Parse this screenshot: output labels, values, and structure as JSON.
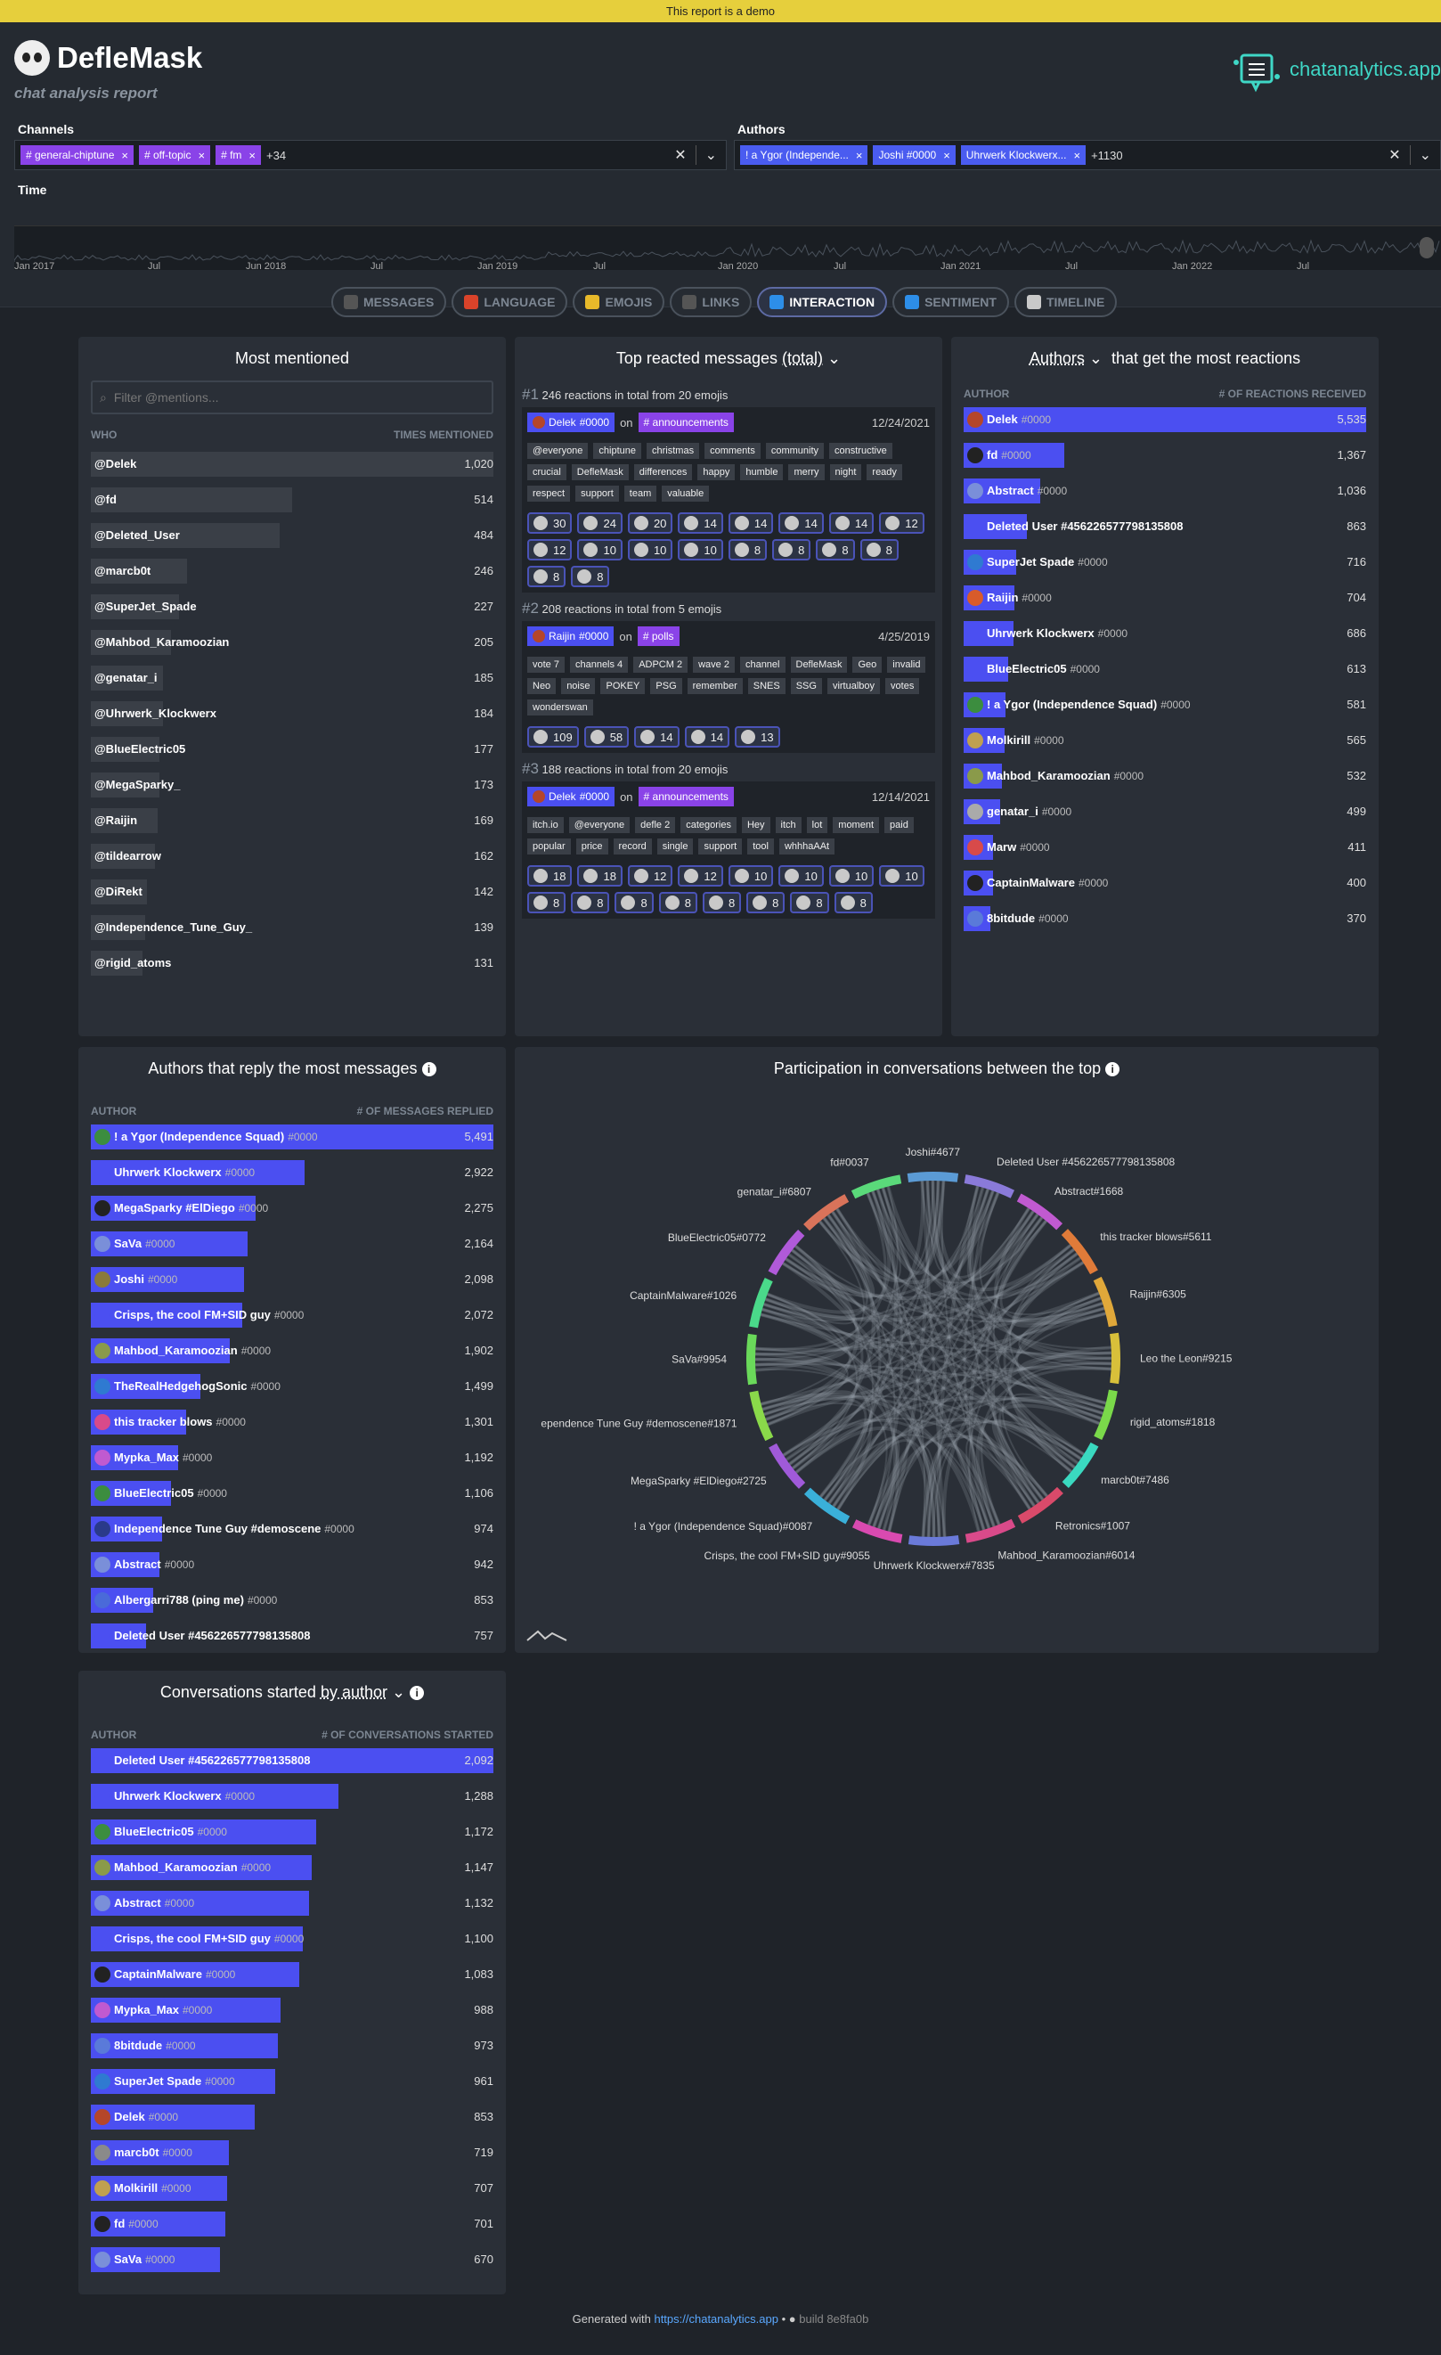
{
  "banner": "This report is a demo",
  "app": {
    "title": "DefleMask",
    "subtitle": "chat analysis report",
    "brand": "chatanalytics",
    "brand_tld": ".app"
  },
  "filters": {
    "channels_label": "Channels",
    "channels": [
      "# general-chiptune",
      "# off-topic",
      "# fm"
    ],
    "channels_more": "+34",
    "authors_label": "Authors",
    "authors": [
      "! a Ygor (Independe...",
      "Joshi #0000",
      "Uhrwerk Klockwerx..."
    ],
    "authors_more": "+1130",
    "time_label": "Time",
    "time_ticks": [
      "Jan 2017",
      "Jul",
      "Jun 2018",
      "Jul",
      "Jan 2019",
      "Jul",
      "Jan 2020",
      "Jul",
      "Jan 2021",
      "Jul",
      "Jan 2022",
      "Jul"
    ]
  },
  "tabs": [
    {
      "label": "MESSAGES",
      "icon": "message-icon",
      "color": "#555"
    },
    {
      "label": "LANGUAGE",
      "icon": "language-icon",
      "color": "#d9432a"
    },
    {
      "label": "EMOJIS",
      "icon": "emoji-icon",
      "color": "#e7b92a"
    },
    {
      "label": "LINKS",
      "icon": "link-icon",
      "color": "#555"
    },
    {
      "label": "INTERACTION",
      "icon": "interaction-icon",
      "color": "#2d8ee8"
    },
    {
      "label": "SENTIMENT",
      "icon": "heart-icon",
      "color": "#2d8ee8"
    },
    {
      "label": "TIMELINE",
      "icon": "calendar-icon",
      "color": "#c9c9c9"
    }
  ],
  "most_mentioned": {
    "title": "Most mentioned",
    "placeholder": "Filter @mentions...",
    "col_who": "WHO",
    "col_times": "TIMES MENTIONED",
    "rows": [
      {
        "name": "@Delek",
        "value": "1,020",
        "pct": 1.0
      },
      {
        "name": "@fd",
        "value": "514",
        "pct": 0.5
      },
      {
        "name": "@Deleted_User",
        "value": "484",
        "pct": 0.47
      },
      {
        "name": "@marcb0t",
        "value": "246",
        "pct": 0.24
      },
      {
        "name": "@SuperJet_Spade",
        "value": "227",
        "pct": 0.22
      },
      {
        "name": "@Mahbod_Karamoozian",
        "value": "205",
        "pct": 0.2
      },
      {
        "name": "@genatar_i",
        "value": "185",
        "pct": 0.18
      },
      {
        "name": "@Uhrwerk_Klockwerx",
        "value": "184",
        "pct": 0.18
      },
      {
        "name": "@BlueElectric05",
        "value": "177",
        "pct": 0.17
      },
      {
        "name": "@MegaSparky_",
        "value": "173",
        "pct": 0.17
      },
      {
        "name": "@Raijin",
        "value": "169",
        "pct": 0.165
      },
      {
        "name": "@tildearrow",
        "value": "162",
        "pct": 0.16
      },
      {
        "name": "@DiRekt",
        "value": "142",
        "pct": 0.14
      },
      {
        "name": "@Independence_Tune_Guy_",
        "value": "139",
        "pct": 0.136
      },
      {
        "name": "@rigid_atoms",
        "value": "131",
        "pct": 0.128
      }
    ]
  },
  "top_reacted": {
    "title": "Top reacted messages",
    "title_sel": "(total)",
    "messages": [
      {
        "rank": "#1",
        "summary": "246 reactions in total from 20 emojis",
        "author": "Delek",
        "tag": "#0000",
        "on": "on",
        "channel": "# announcements",
        "date": "12/24/2021",
        "words": [
          "@everyone",
          "chiptune",
          "christmas",
          "comments",
          "community",
          "constructive",
          "crucial",
          "DefleMask",
          "differences",
          "happy",
          "humble",
          "merry",
          "night",
          "ready",
          "respect",
          "support",
          "team",
          "valuable"
        ],
        "reactions": [
          "30",
          "24",
          "20",
          "14",
          "14",
          "14",
          "14",
          "12",
          "12",
          "10",
          "10",
          "10",
          "8",
          "8",
          "8",
          "8",
          "8",
          "8"
        ]
      },
      {
        "rank": "#2",
        "summary": "208 reactions in total from 5 emojis",
        "author": "Raijin",
        "tag": "#0000",
        "on": "on",
        "channel": "# polls",
        "date": "4/25/2019",
        "words": [
          "vote 7",
          "channels 4",
          "ADPCM 2",
          "wave 2",
          "channel",
          "DefleMask",
          "Geo",
          "invalid",
          "Neo",
          "noise",
          "POKEY",
          "PSG",
          "remember",
          "SNES",
          "SSG",
          "virtualboy",
          "votes",
          "wonderswan"
        ],
        "reactions": [
          "109",
          "58",
          "14",
          "14",
          "13"
        ]
      },
      {
        "rank": "#3",
        "summary": "188 reactions in total from 20 emojis",
        "author": "Delek",
        "tag": "#0000",
        "on": "on",
        "channel": "# announcements",
        "date": "12/14/2021",
        "words": [
          "itch.io",
          "@everyone",
          "defle 2",
          "categories",
          "Hey",
          "itch",
          "lot",
          "moment",
          "paid",
          "popular",
          "price",
          "record",
          "single",
          "support",
          "tool",
          "whhhaAAt"
        ],
        "reactions": [
          "18",
          "18",
          "12",
          "12",
          "10",
          "10",
          "10",
          "10",
          "8",
          "8",
          "8",
          "8",
          "8",
          "8",
          "8",
          "8"
        ]
      }
    ]
  },
  "authors_reactions": {
    "title_sel": "Authors",
    "title": "that get the most reactions",
    "col_author": "AUTHOR",
    "col_val": "# OF REACTIONS RECEIVED",
    "rows": [
      {
        "name": "Delek",
        "tag": "#0000",
        "value": "5,535",
        "pct": 1.0,
        "av": "#b5462a"
      },
      {
        "name": "fd",
        "tag": "#0000",
        "value": "1,367",
        "pct": 0.25,
        "av": "#222"
      },
      {
        "name": "Abstract",
        "tag": "#0000",
        "value": "1,036",
        "pct": 0.19,
        "av": "#7a8fd9"
      },
      {
        "name": "Deleted User #456226577798135808",
        "tag": "",
        "value": "863",
        "pct": 0.156,
        "av": "#4b4ff1"
      },
      {
        "name": "SuperJet Spade",
        "tag": "#0000",
        "value": "716",
        "pct": 0.13,
        "av": "#2f7ad1"
      },
      {
        "name": "Raijin",
        "tag": "#0000",
        "value": "704",
        "pct": 0.127,
        "av": "#d85b2a"
      },
      {
        "name": "Uhrwerk Klockwerx",
        "tag": "#0000",
        "value": "686",
        "pct": 0.124,
        "av": "#4b4ff1"
      },
      {
        "name": "BlueElectric05",
        "tag": "#0000",
        "value": "613",
        "pct": 0.11,
        "av": "#4b4ff1"
      },
      {
        "name": "! a Ygor (Independence Squad)",
        "tag": "#0000",
        "value": "581",
        "pct": 0.105,
        "av": "#3c8d3f"
      },
      {
        "name": "Molkirill",
        "tag": "#0000",
        "value": "565",
        "pct": 0.102,
        "av": "#c0a050"
      },
      {
        "name": "Mahbod_Karamoozian",
        "tag": "#0000",
        "value": "532",
        "pct": 0.096,
        "av": "#8a9a4a"
      },
      {
        "name": "genatar_i",
        "tag": "#0000",
        "value": "499",
        "pct": 0.09,
        "av": "#aaa"
      },
      {
        "name": "Marw",
        "tag": "#0000",
        "value": "411",
        "pct": 0.074,
        "av": "#d84a4a"
      },
      {
        "name": "CaptainMalware",
        "tag": "#0000",
        "value": "400",
        "pct": 0.072,
        "av": "#222"
      },
      {
        "name": "8bitdude",
        "tag": "#0000",
        "value": "370",
        "pct": 0.067,
        "av": "#5a7ad9"
      }
    ]
  },
  "replies": {
    "title": "Authors that reply the most messages",
    "col_author": "AUTHOR",
    "col_val": "# OF MESSAGES REPLIED",
    "rows": [
      {
        "name": "! a Ygor (Independence Squad)",
        "tag": "#0000",
        "value": "5,491",
        "pct": 1.0,
        "av": "#3c8d3f"
      },
      {
        "name": "Uhrwerk Klockwerx",
        "tag": "#0000",
        "value": "2,922",
        "pct": 0.53,
        "av": "#4b4ff1"
      },
      {
        "name": "MegaSparky #ElDiego",
        "tag": "#0000",
        "value": "2,275",
        "pct": 0.41,
        "av": "#222"
      },
      {
        "name": "SaVa",
        "tag": "#0000",
        "value": "2,164",
        "pct": 0.39,
        "av": "#7a8fd9"
      },
      {
        "name": "Joshi",
        "tag": "#0000",
        "value": "2,098",
        "pct": 0.38,
        "av": "#8a7a3a"
      },
      {
        "name": "Crisps, the cool FM+SID guy",
        "tag": "#0000",
        "value": "2,072",
        "pct": 0.377,
        "av": "#4b4ff1"
      },
      {
        "name": "Mahbod_Karamoozian",
        "tag": "#0000",
        "value": "1,902",
        "pct": 0.346,
        "av": "#8a9a4a"
      },
      {
        "name": "TheRealHedgehogSonic",
        "tag": "#0000",
        "value": "1,499",
        "pct": 0.273,
        "av": "#2f7ad1"
      },
      {
        "name": "this tracker blows",
        "tag": "#0000",
        "value": "1,301",
        "pct": 0.237,
        "av": "#d84a8a"
      },
      {
        "name": "Mypka_Max",
        "tag": "#0000",
        "value": "1,192",
        "pct": 0.217,
        "av": "#c05ad0"
      },
      {
        "name": "BlueElectric05",
        "tag": "#0000",
        "value": "1,106",
        "pct": 0.2,
        "av": "#3c8d3f"
      },
      {
        "name": "Independence Tune Guy #demoscene",
        "tag": "#0000",
        "value": "974",
        "pct": 0.177,
        "av": "#2a3a8a"
      },
      {
        "name": "Abstract",
        "tag": "#0000",
        "value": "942",
        "pct": 0.17,
        "av": "#7a8fd9"
      },
      {
        "name": "Albergarri788 (ping me)",
        "tag": "#0000",
        "value": "853",
        "pct": 0.155,
        "av": "#4a6ad9"
      },
      {
        "name": "Deleted User #456226577798135808",
        "tag": "",
        "value": "757",
        "pct": 0.138,
        "av": "#4b4ff1"
      }
    ]
  },
  "participation": {
    "title": "Participation in conversations between the top",
    "labels": [
      {
        "name": "Joshi#4677",
        "color": "#5b9bd5"
      },
      {
        "name": "Deleted User #456226577798135808",
        "color": "#8a7ad9"
      },
      {
        "name": "Abstract#1668",
        "color": "#c05ad0"
      },
      {
        "name": "this tracker blows#5611",
        "color": "#e07b39"
      },
      {
        "name": "Raijin#6305",
        "color": "#e0a83a"
      },
      {
        "name": "Leo the Leon#9215",
        "color": "#d8c03a"
      },
      {
        "name": "rigid_atoms#1818",
        "color": "#7ad94a"
      },
      {
        "name": "marcb0t#7486",
        "color": "#3ad9c0"
      },
      {
        "name": "Retronics#1007",
        "color": "#d94a6a"
      },
      {
        "name": "Mahbod_Karamoozian#6014",
        "color": "#d94a8a"
      },
      {
        "name": "Uhrwerk Klockwerx#7835",
        "color": "#6a7ad9"
      },
      {
        "name": "Crisps, the cool FM+SID guy#9055",
        "color": "#d94ab0"
      },
      {
        "name": "! a Ygor (Independence Squad)#0087",
        "color": "#3ab0d9"
      },
      {
        "name": "MegaSparky #ElDiego#2725",
        "color": "#a05ad9"
      },
      {
        "name": "ependence Tune Guy #demoscene#1871",
        "color": "#8ad94a"
      },
      {
        "name": "SaVa#9954",
        "color": "#6ad95a"
      },
      {
        "name": "CaptainMalware#1026",
        "color": "#4ad98a"
      },
      {
        "name": "BlueElectric05#0772",
        "color": "#b05ad9"
      },
      {
        "name": "genatar_i#6807",
        "color": "#d9735a"
      },
      {
        "name": "fd#0037",
        "color": "#5ad97a"
      }
    ]
  },
  "conversations": {
    "title": "Conversations started",
    "title_sel": "by author",
    "col_author": "AUTHOR",
    "col_val": "# OF CONVERSATIONS STARTED",
    "rows": [
      {
        "name": "Deleted User #456226577798135808",
        "tag": "",
        "value": "2,092",
        "pct": 1.0,
        "av": "#4b4ff1"
      },
      {
        "name": "Uhrwerk Klockwerx",
        "tag": "#0000",
        "value": "1,288",
        "pct": 0.615,
        "av": "#4b4ff1"
      },
      {
        "name": "BlueElectric05",
        "tag": "#0000",
        "value": "1,172",
        "pct": 0.56,
        "av": "#3c8d3f"
      },
      {
        "name": "Mahbod_Karamoozian",
        "tag": "#0000",
        "value": "1,147",
        "pct": 0.548,
        "av": "#8a9a4a"
      },
      {
        "name": "Abstract",
        "tag": "#0000",
        "value": "1,132",
        "pct": 0.541,
        "av": "#7a8fd9"
      },
      {
        "name": "Crisps, the cool FM+SID guy",
        "tag": "#0000",
        "value": "1,100",
        "pct": 0.526,
        "av": "#4b4ff1"
      },
      {
        "name": "CaptainMalware",
        "tag": "#0000",
        "value": "1,083",
        "pct": 0.518,
        "av": "#222"
      },
      {
        "name": "Mypka_Max",
        "tag": "#0000",
        "value": "988",
        "pct": 0.472,
        "av": "#c05ad0"
      },
      {
        "name": "8bitdude",
        "tag": "#0000",
        "value": "973",
        "pct": 0.465,
        "av": "#5a7ad9"
      },
      {
        "name": "SuperJet Spade",
        "tag": "#0000",
        "value": "961",
        "pct": 0.459,
        "av": "#2f7ad1"
      },
      {
        "name": "Delek",
        "tag": "#0000",
        "value": "853",
        "pct": 0.408,
        "av": "#b5462a"
      },
      {
        "name": "marcb0t",
        "tag": "#0000",
        "value": "719",
        "pct": 0.344,
        "av": "#8a8a8a"
      },
      {
        "name": "Molkirill",
        "tag": "#0000",
        "value": "707",
        "pct": 0.338,
        "av": "#c0a050"
      },
      {
        "name": "fd",
        "tag": "#0000",
        "value": "701",
        "pct": 0.335,
        "av": "#222"
      },
      {
        "name": "SaVa",
        "tag": "#0000",
        "value": "670",
        "pct": 0.32,
        "av": "#7a8fd9"
      }
    ]
  },
  "footer": {
    "text": "Generated with",
    "link": "https://chatanalytics.app",
    "sep": "•",
    "build": "build 8e8fa0b"
  }
}
